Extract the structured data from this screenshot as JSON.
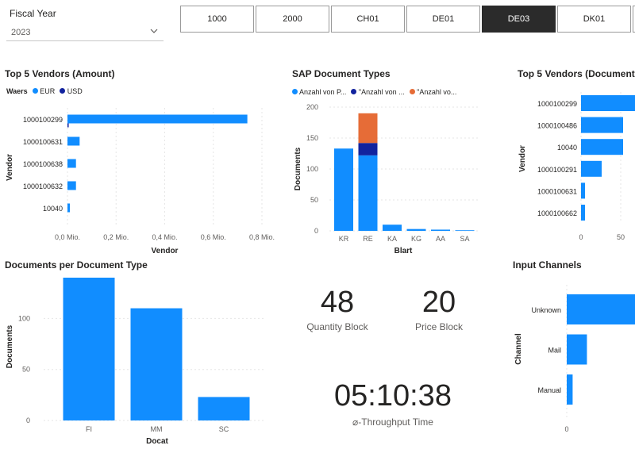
{
  "filters": {
    "fiscal_year_label": "Fiscal Year",
    "fiscal_year_value": "2023",
    "company_codes": [
      {
        "label": "1000",
        "selected": false
      },
      {
        "label": "2000",
        "selected": false
      },
      {
        "label": "CH01",
        "selected": false
      },
      {
        "label": "DE01",
        "selected": false
      },
      {
        "label": "DE03",
        "selected": true
      },
      {
        "label": "DK01",
        "selected": false
      }
    ]
  },
  "vendors_amount": {
    "title": "Top 5 Vendors (Amount)",
    "legend_title": "Waers",
    "legend": [
      {
        "name": "EUR",
        "color": "#118DFF"
      },
      {
        "name": "USD",
        "color": "#12239E"
      }
    ],
    "xlabel": "Vendor",
    "ylabel": "Vendor"
  },
  "doc_types": {
    "title": "SAP Document Types",
    "legend": [
      {
        "name": "Anzahl von P...",
        "color": "#118DFF"
      },
      {
        "name": "\"Anzahl von ...",
        "color": "#12239E"
      },
      {
        "name": "\"Anzahl vo...",
        "color": "#E66C37"
      }
    ],
    "xlabel": "Blart",
    "ylabel": "Documents"
  },
  "vendors_docs": {
    "title": "Top 5 Vendors (Document",
    "ylabel": "Vendor"
  },
  "docs_per_type": {
    "title": "Documents per Document Type",
    "xlabel": "Docat",
    "ylabel": "Documents"
  },
  "kpis": {
    "quantity_block_value": "48",
    "quantity_block_label": "Quantity Block",
    "price_block_value": "20",
    "price_block_label": "Price Block",
    "throughput_value": "05:10:38",
    "throughput_label": "⌀-Throughput Time"
  },
  "input_channels": {
    "title": "Input Channels",
    "ylabel": "Channel"
  },
  "chart_data": [
    {
      "id": "vendors_amount",
      "type": "bar",
      "orientation": "horizontal",
      "categories": [
        "1000100299",
        "1000100631",
        "1000100638",
        "1000100632",
        "10040"
      ],
      "series": [
        {
          "name": "EUR",
          "values": [
            0.74,
            0.05,
            0.035,
            0.035,
            0.01
          ]
        },
        {
          "name": "USD",
          "values": [
            0.005,
            0,
            0,
            0,
            0
          ]
        }
      ],
      "xlim": [
        0,
        0.8
      ],
      "xticks": [
        0,
        0.2,
        0.4,
        0.6,
        0.8
      ],
      "xtick_labels": [
        "0,0 Mio.",
        "0,2 Mio.",
        "0,4 Mio.",
        "0,6 Mio.",
        "0,8 Mio."
      ],
      "xlabel": "Vendor",
      "ylabel": "Vendor",
      "grid": true
    },
    {
      "id": "doc_types",
      "type": "bar",
      "stacked": true,
      "categories": [
        "KR",
        "RE",
        "KA",
        "KG",
        "AA",
        "SA"
      ],
      "series": [
        {
          "name": "Anzahl von P...",
          "values": [
            133,
            122,
            10,
            3,
            2,
            1
          ]
        },
        {
          "name": "\"Anzahl von ...",
          "values": [
            0,
            20,
            0,
            0,
            0,
            0
          ]
        },
        {
          "name": "\"Anzahl vo...",
          "values": [
            0,
            48,
            0,
            0,
            0,
            0
          ]
        }
      ],
      "ylim": [
        0,
        200
      ],
      "yticks": [
        0,
        50,
        100,
        150,
        200
      ],
      "xlabel": "Blart",
      "ylabel": "Documents",
      "grid": true
    },
    {
      "id": "vendors_docs",
      "type": "bar",
      "orientation": "horizontal",
      "categories": [
        "1000100299",
        "1000100486",
        "10040",
        "1000100291",
        "1000100631",
        "1000100662"
      ],
      "values": [
        70,
        53,
        53,
        26,
        5,
        5
      ],
      "xticks": [
        0,
        50
      ],
      "xlim": [
        0,
        100
      ],
      "ylabel": "Vendor",
      "grid": true
    },
    {
      "id": "docs_per_type",
      "type": "bar",
      "categories": [
        "FI",
        "MM",
        "SC"
      ],
      "values": [
        140,
        110,
        23
      ],
      "ylim": [
        0,
        140
      ],
      "yticks": [
        0,
        50,
        100
      ],
      "xlabel": "Docat",
      "ylabel": "Documents",
      "grid": true
    },
    {
      "id": "input_channels",
      "type": "bar",
      "orientation": "horizontal",
      "categories": [
        "Unknown",
        "Mail",
        "Manual"
      ],
      "values": [
        100,
        24,
        7
      ],
      "xlim": [
        0,
        100
      ],
      "xticks": [
        0
      ],
      "ylabel": "Channel",
      "grid": true
    }
  ]
}
